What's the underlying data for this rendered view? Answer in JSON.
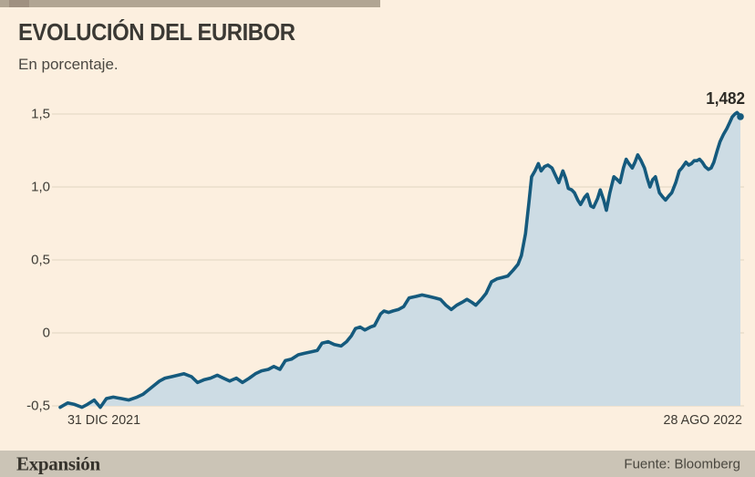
{
  "header": {
    "title": "EVOLUCIÓN DEL EURIBOR",
    "subtitle": "En porcentaje."
  },
  "footer": {
    "brand": "Expansión",
    "source": "Fuente: Bloomberg"
  },
  "colors": {
    "background": "#fcefdf",
    "topbar": "#b1a593",
    "topbar_accent": "#9f9080",
    "footer_bar": "#cbc4b6",
    "grid": "#e5dac8",
    "line": "#155a7d",
    "fill": "#cddce4",
    "title_text": "#3b3934"
  },
  "chart_data": {
    "type": "area",
    "title": "EVOLUCIÓN DEL EURIBOR",
    "unit_label": "En porcentaje.",
    "x_start_label": "31 DIC 2021",
    "x_end_label": "28 AGO 2022",
    "end_label": "1,482",
    "end_value": 1.482,
    "ylim": [
      -0.5,
      1.5
    ],
    "grid": true,
    "legend": "none",
    "grid_color": "#e5dac8",
    "line_color": "#155a7d",
    "fill_color": "#cddce4",
    "y_ticks": [
      {
        "label": "1,5",
        "value": 1.5
      },
      {
        "label": "1,0",
        "value": 1.0
      },
      {
        "label": "0,5",
        "value": 0.5
      },
      {
        "label": "0",
        "value": 0.0
      },
      {
        "label": "-0,5",
        "value": -0.5
      }
    ],
    "points": [
      [
        0.0,
        -0.51
      ],
      [
        0.011,
        -0.48
      ],
      [
        0.021,
        -0.49
      ],
      [
        0.032,
        -0.51
      ],
      [
        0.04,
        -0.49
      ],
      [
        0.05,
        -0.46
      ],
      [
        0.059,
        -0.51
      ],
      [
        0.068,
        -0.45
      ],
      [
        0.078,
        -0.44
      ],
      [
        0.09,
        -0.45
      ],
      [
        0.101,
        -0.46
      ],
      [
        0.113,
        -0.44
      ],
      [
        0.122,
        -0.42
      ],
      [
        0.13,
        -0.39
      ],
      [
        0.138,
        -0.36
      ],
      [
        0.146,
        -0.33
      ],
      [
        0.154,
        -0.31
      ],
      [
        0.164,
        -0.3
      ],
      [
        0.173,
        -0.29
      ],
      [
        0.182,
        -0.28
      ],
      [
        0.193,
        -0.3
      ],
      [
        0.202,
        -0.34
      ],
      [
        0.212,
        -0.32
      ],
      [
        0.221,
        -0.31
      ],
      [
        0.231,
        -0.29
      ],
      [
        0.24,
        -0.31
      ],
      [
        0.249,
        -0.33
      ],
      [
        0.259,
        -0.31
      ],
      [
        0.268,
        -0.34
      ],
      [
        0.278,
        -0.31
      ],
      [
        0.287,
        -0.28
      ],
      [
        0.296,
        -0.26
      ],
      [
        0.306,
        -0.25
      ],
      [
        0.314,
        -0.23
      ],
      [
        0.323,
        -0.25
      ],
      [
        0.331,
        -0.19
      ],
      [
        0.34,
        -0.18
      ],
      [
        0.35,
        -0.15
      ],
      [
        0.359,
        -0.14
      ],
      [
        0.369,
        -0.13
      ],
      [
        0.378,
        -0.12
      ],
      [
        0.385,
        -0.07
      ],
      [
        0.394,
        -0.06
      ],
      [
        0.403,
        -0.08
      ],
      [
        0.413,
        -0.09
      ],
      [
        0.421,
        -0.06
      ],
      [
        0.428,
        -0.02
      ],
      [
        0.434,
        0.03
      ],
      [
        0.441,
        0.04
      ],
      [
        0.448,
        0.02
      ],
      [
        0.456,
        0.04
      ],
      [
        0.462,
        0.05
      ],
      [
        0.471,
        0.13
      ],
      [
        0.476,
        0.15
      ],
      [
        0.483,
        0.14
      ],
      [
        0.489,
        0.15
      ],
      [
        0.497,
        0.16
      ],
      [
        0.505,
        0.18
      ],
      [
        0.513,
        0.24
      ],
      [
        0.523,
        0.25
      ],
      [
        0.532,
        0.26
      ],
      [
        0.542,
        0.25
      ],
      [
        0.551,
        0.24
      ],
      [
        0.559,
        0.23
      ],
      [
        0.567,
        0.19
      ],
      [
        0.575,
        0.16
      ],
      [
        0.583,
        0.19
      ],
      [
        0.591,
        0.21
      ],
      [
        0.598,
        0.23
      ],
      [
        0.605,
        0.21
      ],
      [
        0.611,
        0.19
      ],
      [
        0.619,
        0.23
      ],
      [
        0.626,
        0.27
      ],
      [
        0.634,
        0.35
      ],
      [
        0.642,
        0.37
      ],
      [
        0.65,
        0.38
      ],
      [
        0.658,
        0.39
      ],
      [
        0.666,
        0.43
      ],
      [
        0.673,
        0.47
      ],
      [
        0.678,
        0.53
      ],
      [
        0.684,
        0.68
      ],
      [
        0.689,
        0.89
      ],
      [
        0.693,
        1.07
      ],
      [
        0.698,
        1.11
      ],
      [
        0.703,
        1.16
      ],
      [
        0.707,
        1.11
      ],
      [
        0.712,
        1.14
      ],
      [
        0.717,
        1.15
      ],
      [
        0.723,
        1.13
      ],
      [
        0.728,
        1.08
      ],
      [
        0.733,
        1.03
      ],
      [
        0.739,
        1.11
      ],
      [
        0.743,
        1.06
      ],
      [
        0.747,
        0.99
      ],
      [
        0.752,
        0.98
      ],
      [
        0.756,
        0.96
      ],
      [
        0.761,
        0.91
      ],
      [
        0.765,
        0.88
      ],
      [
        0.771,
        0.93
      ],
      [
        0.775,
        0.95
      ],
      [
        0.78,
        0.87
      ],
      [
        0.784,
        0.86
      ],
      [
        0.79,
        0.92
      ],
      [
        0.794,
        0.98
      ],
      [
        0.799,
        0.91
      ],
      [
        0.803,
        0.84
      ],
      [
        0.808,
        0.96
      ],
      [
        0.814,
        1.07
      ],
      [
        0.819,
        1.05
      ],
      [
        0.823,
        1.03
      ],
      [
        0.828,
        1.13
      ],
      [
        0.832,
        1.19
      ],
      [
        0.836,
        1.16
      ],
      [
        0.841,
        1.13
      ],
      [
        0.845,
        1.17
      ],
      [
        0.849,
        1.22
      ],
      [
        0.854,
        1.18
      ],
      [
        0.859,
        1.13
      ],
      [
        0.863,
        1.06
      ],
      [
        0.867,
        1.0
      ],
      [
        0.871,
        1.05
      ],
      [
        0.875,
        1.07
      ],
      [
        0.881,
        0.96
      ],
      [
        0.886,
        0.93
      ],
      [
        0.89,
        0.91
      ],
      [
        0.895,
        0.94
      ],
      [
        0.899,
        0.96
      ],
      [
        0.905,
        1.03
      ],
      [
        0.91,
        1.11
      ],
      [
        0.914,
        1.13
      ],
      [
        0.92,
        1.17
      ],
      [
        0.924,
        1.15
      ],
      [
        0.928,
        1.16
      ],
      [
        0.932,
        1.18
      ],
      [
        0.936,
        1.18
      ],
      [
        0.94,
        1.19
      ],
      [
        0.944,
        1.17
      ],
      [
        0.948,
        1.14
      ],
      [
        0.953,
        1.12
      ],
      [
        0.957,
        1.13
      ],
      [
        0.961,
        1.17
      ],
      [
        0.966,
        1.25
      ],
      [
        0.97,
        1.31
      ],
      [
        0.975,
        1.36
      ],
      [
        0.98,
        1.4
      ],
      [
        0.984,
        1.44
      ],
      [
        0.988,
        1.48
      ],
      [
        0.992,
        1.5
      ],
      [
        0.995,
        1.51
      ],
      [
        0.997,
        1.5
      ],
      [
        1.0,
        1.482
      ]
    ]
  }
}
